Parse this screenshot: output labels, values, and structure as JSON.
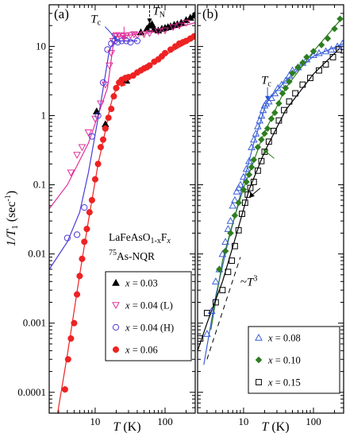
{
  "chart_data": [
    {
      "type": "scatter",
      "panel_label": "(a)",
      "xlabel": "T (K)",
      "ylabel": "1/T1 (sec-1)",
      "xscale": "log",
      "yscale": "log",
      "xlim": [
        2.2,
        270
      ],
      "ylim": [
        5e-05,
        40
      ],
      "x_ticks": [
        {
          "value": 10,
          "label": "10"
        },
        {
          "value": 100,
          "label": "100"
        }
      ],
      "y_ticks": [
        {
          "value": 10,
          "label": "10"
        },
        {
          "value": 1,
          "label": "1"
        },
        {
          "value": 0.1,
          "label": "0.1"
        },
        {
          "value": 0.01,
          "label": "0.01"
        },
        {
          "value": 0.001,
          "label": "0.001"
        },
        {
          "value": 0.0001,
          "label": "0.0001"
        }
      ],
      "compound": {
        "base": "LaFeAsO",
        "sub": "1-x",
        "el": "F",
        "x": "x"
      },
      "nucleus": {
        "sup": "75",
        "rest": "As-NQR"
      },
      "legend_position": "bottom-right",
      "annotations": [
        {
          "id": "tc",
          "label": "T",
          "sub": "c",
          "color": "#2850d8",
          "at": [
            21,
            12
          ]
        },
        {
          "id": "tn",
          "label": "T",
          "sub": "N",
          "color": "#000000",
          "at": [
            60,
            21
          ]
        }
      ],
      "series": [
        {
          "name": "x = 0.03",
          "marker": "triangle-up-filled",
          "color": "#000000",
          "x": [
            10.5,
            14,
            28,
            45,
            55,
            60,
            65,
            70,
            80,
            90,
            100,
            110,
            120,
            135,
            150,
            170,
            200,
            230,
            260
          ],
          "y": [
            1.15,
            0.75,
            3.2,
            16,
            18,
            20,
            21,
            18,
            17,
            18,
            18.5,
            19,
            19.5,
            20.5,
            21,
            22,
            24,
            26,
            28
          ]
        },
        {
          "name": "x = 0.04 (L)",
          "marker": "triangle-down-open",
          "color": "#e0309a",
          "x": [
            4.5,
            5.5,
            6.5,
            8,
            10,
            12,
            14,
            16,
            17,
            18,
            19,
            20,
            22,
            25,
            28,
            32,
            36,
            40,
            50,
            60,
            80,
            100,
            130,
            160,
            200
          ],
          "y": [
            0.15,
            0.27,
            0.35,
            0.57,
            0.9,
            1.5,
            2.8,
            5.3,
            8,
            12,
            14,
            14.5,
            14.5,
            14,
            14.5,
            14.5,
            15,
            14.5,
            15,
            15.5,
            16.5,
            17,
            19,
            20,
            22
          ]
        },
        {
          "name": "x = 0.04 (H)",
          "marker": "circle-open",
          "color": "#4a3ad8",
          "x": [
            4,
            5.5,
            7,
            9,
            11,
            13,
            15,
            17,
            19,
            21,
            24,
            28,
            32,
            40
          ],
          "y": [
            0.017,
            0.019,
            0.047,
            0.5,
            1.0,
            3.0,
            9.0,
            11,
            12,
            11.5,
            12,
            12,
            11.5,
            12
          ]
        },
        {
          "name": "x = 0.06",
          "marker": "circle-filled",
          "color": "#ee2222",
          "x": [
            3.7,
            4.1,
            4.5,
            5,
            5.5,
            6,
            6.5,
            7,
            7.6,
            8.3,
            9,
            10,
            11,
            12,
            13,
            14,
            15.5,
            17,
            18.5,
            20,
            22,
            24,
            27,
            30,
            35,
            40,
            45,
            50,
            55,
            60,
            70,
            80,
            90,
            100,
            120,
            140,
            160,
            180,
            200,
            230,
            260
          ],
          "y": [
            0.00011,
            0.0003,
            0.0006,
            0.001,
            0.0026,
            0.0048,
            0.0085,
            0.015,
            0.023,
            0.04,
            0.06,
            0.12,
            0.2,
            0.35,
            0.45,
            0.65,
            0.93,
            1.25,
            1.9,
            2.5,
            3.0,
            3.3,
            3.5,
            3.6,
            3.8,
            4.2,
            4.5,
            4.8,
            5.0,
            5.3,
            6.0,
            6.5,
            7.2,
            8.0,
            9.0,
            10,
            11,
            11.5,
            12,
            13,
            14
          ]
        }
      ],
      "fit_lines": [
        {
          "color": "#e0309a",
          "x": [
            2.2,
            4,
            8,
            15,
            18,
            20,
            40,
            100,
            270
          ],
          "y": [
            0.045,
            0.1,
            0.4,
            2.5,
            10,
            14,
            15,
            17,
            22
          ]
        },
        {
          "color": "#4a3ad8",
          "x": [
            2.2,
            4,
            6,
            8,
            12,
            16,
            19,
            22,
            40
          ],
          "y": [
            0.006,
            0.015,
            0.04,
            0.15,
            1.5,
            9,
            12,
            12,
            12
          ]
        },
        {
          "color": "#ee2222",
          "x": [
            2.9,
            4,
            6,
            8,
            11,
            14,
            16,
            18,
            22,
            40,
            100,
            270
          ],
          "y": [
            5e-05,
            0.00035,
            0.005,
            0.03,
            0.2,
            0.6,
            1.2,
            1.9,
            3.0,
            4.0,
            7.5,
            13
          ]
        }
      ]
    },
    {
      "type": "scatter",
      "panel_label": "(b)",
      "xlabel": "T (K)",
      "xscale": "log",
      "yscale": "log",
      "xlim": [
        2.2,
        270
      ],
      "ylim": [
        5e-05,
        40
      ],
      "x_ticks": [
        {
          "value": 10,
          "label": "10"
        },
        {
          "value": 100,
          "label": "100"
        }
      ],
      "legend_position": "bottom-right",
      "annotations": [
        {
          "id": "tc",
          "label": "T",
          "sub": "c",
          "color": "#2850d8",
          "at": [
            22,
            1.6
          ]
        },
        {
          "id": "power",
          "label": "~T",
          "sup": "3",
          "color": "#000000",
          "at": [
            9,
            0.0035
          ]
        }
      ],
      "series": [
        {
          "name": "x = 0.08",
          "marker": "triangle-up-open",
          "color": "#3a5fd8",
          "x": [
            3,
            3.5,
            4,
            4.5,
            5,
            5.5,
            6,
            6.5,
            7,
            7.5,
            8,
            8.5,
            9,
            10,
            11,
            12,
            13,
            14,
            15,
            16,
            17,
            18,
            19,
            20,
            21,
            23,
            25,
            28,
            31,
            35,
            40,
            45,
            50,
            60,
            70,
            80,
            100,
            120,
            150,
            180,
            220,
            260
          ],
          "y": [
            0.0007,
            0.0015,
            0.004,
            0.006,
            0.01,
            0.015,
            0.023,
            0.03,
            0.05,
            0.06,
            0.08,
            0.09,
            0.1,
            0.13,
            0.17,
            0.22,
            0.35,
            0.45,
            0.55,
            0.7,
            0.85,
            1.0,
            1.2,
            1.4,
            1.5,
            1.6,
            1.8,
            2.1,
            2.5,
            2.8,
            3.2,
            3.8,
            4.5,
            5.0,
            5.8,
            6.5,
            7.5,
            8.0,
            8.5,
            9.0,
            10,
            11
          ]
        },
        {
          "name": "x = 0.10",
          "marker": "diamond-filled",
          "color": "#2e7d20",
          "x": [
            4.5,
            5.5,
            6.5,
            7.5,
            8.5,
            10,
            11,
            12,
            13,
            14,
            16,
            18,
            20,
            22,
            25,
            28,
            32,
            36,
            40,
            45,
            50,
            60,
            70,
            80,
            100,
            130,
            160,
            200,
            240
          ],
          "y": [
            0.006,
            0.011,
            0.02,
            0.036,
            0.055,
            0.085,
            0.11,
            0.14,
            0.18,
            0.23,
            0.35,
            0.45,
            0.55,
            0.65,
            0.9,
            1.1,
            1.5,
            2.1,
            2.5,
            3.1,
            4.1,
            5.0,
            5.8,
            7.0,
            8.5,
            10.5,
            13,
            18,
            25
          ]
        },
        {
          "name": "x = 0.15",
          "marker": "square-open",
          "color": "#000000",
          "x": [
            2.4,
            3,
            4,
            5,
            6,
            6.8,
            7.5,
            8.5,
            9.5,
            10.5,
            11.5,
            12.5,
            14,
            16,
            18,
            20,
            23,
            27,
            32,
            38,
            45,
            55,
            70,
            90,
            120,
            150,
            190,
            230
          ],
          "y": [
            0.0006,
            0.0014,
            0.002,
            0.003,
            0.0055,
            0.008,
            0.013,
            0.022,
            0.038,
            0.055,
            0.072,
            0.09,
            0.11,
            0.16,
            0.22,
            0.3,
            0.42,
            0.6,
            0.85,
            1.2,
            1.6,
            2.1,
            2.8,
            3.5,
            4.5,
            5.5,
            7.0,
            9.0
          ]
        }
      ],
      "fit_lines": [
        {
          "color": "#3a5fd8",
          "x": [
            2.7,
            4,
            6,
            8,
            10,
            14,
            18,
            21,
            24,
            40,
            100,
            270
          ],
          "y": [
            0.00025,
            0.0025,
            0.015,
            0.045,
            0.11,
            0.4,
            0.9,
            1.5,
            1.8,
            3.2,
            7.2,
            11
          ]
        },
        {
          "color": "#2e7d20",
          "x": [
            3.4,
            5,
            7,
            10,
            14,
            18,
            22,
            40,
            100,
            250
          ],
          "y": [
            0.0008,
            0.008,
            0.028,
            0.09,
            0.22,
            0.45,
            0.7,
            2.5,
            8.5,
            25
          ]
        },
        {
          "color": "#000000",
          "x": [
            2.2,
            3,
            5,
            8,
            12,
            20,
            40,
            100,
            240
          ],
          "y": [
            0.0004,
            0.001,
            0.004,
            0.02,
            0.085,
            0.3,
            1.2,
            4.0,
            9.5
          ]
        }
      ],
      "reference_lines": [
        {
          "style": "dashed",
          "color": "#000000",
          "x": [
            3.0,
            9.0
          ],
          "y": [
            0.0003,
            0.009
          ]
        }
      ]
    }
  ]
}
